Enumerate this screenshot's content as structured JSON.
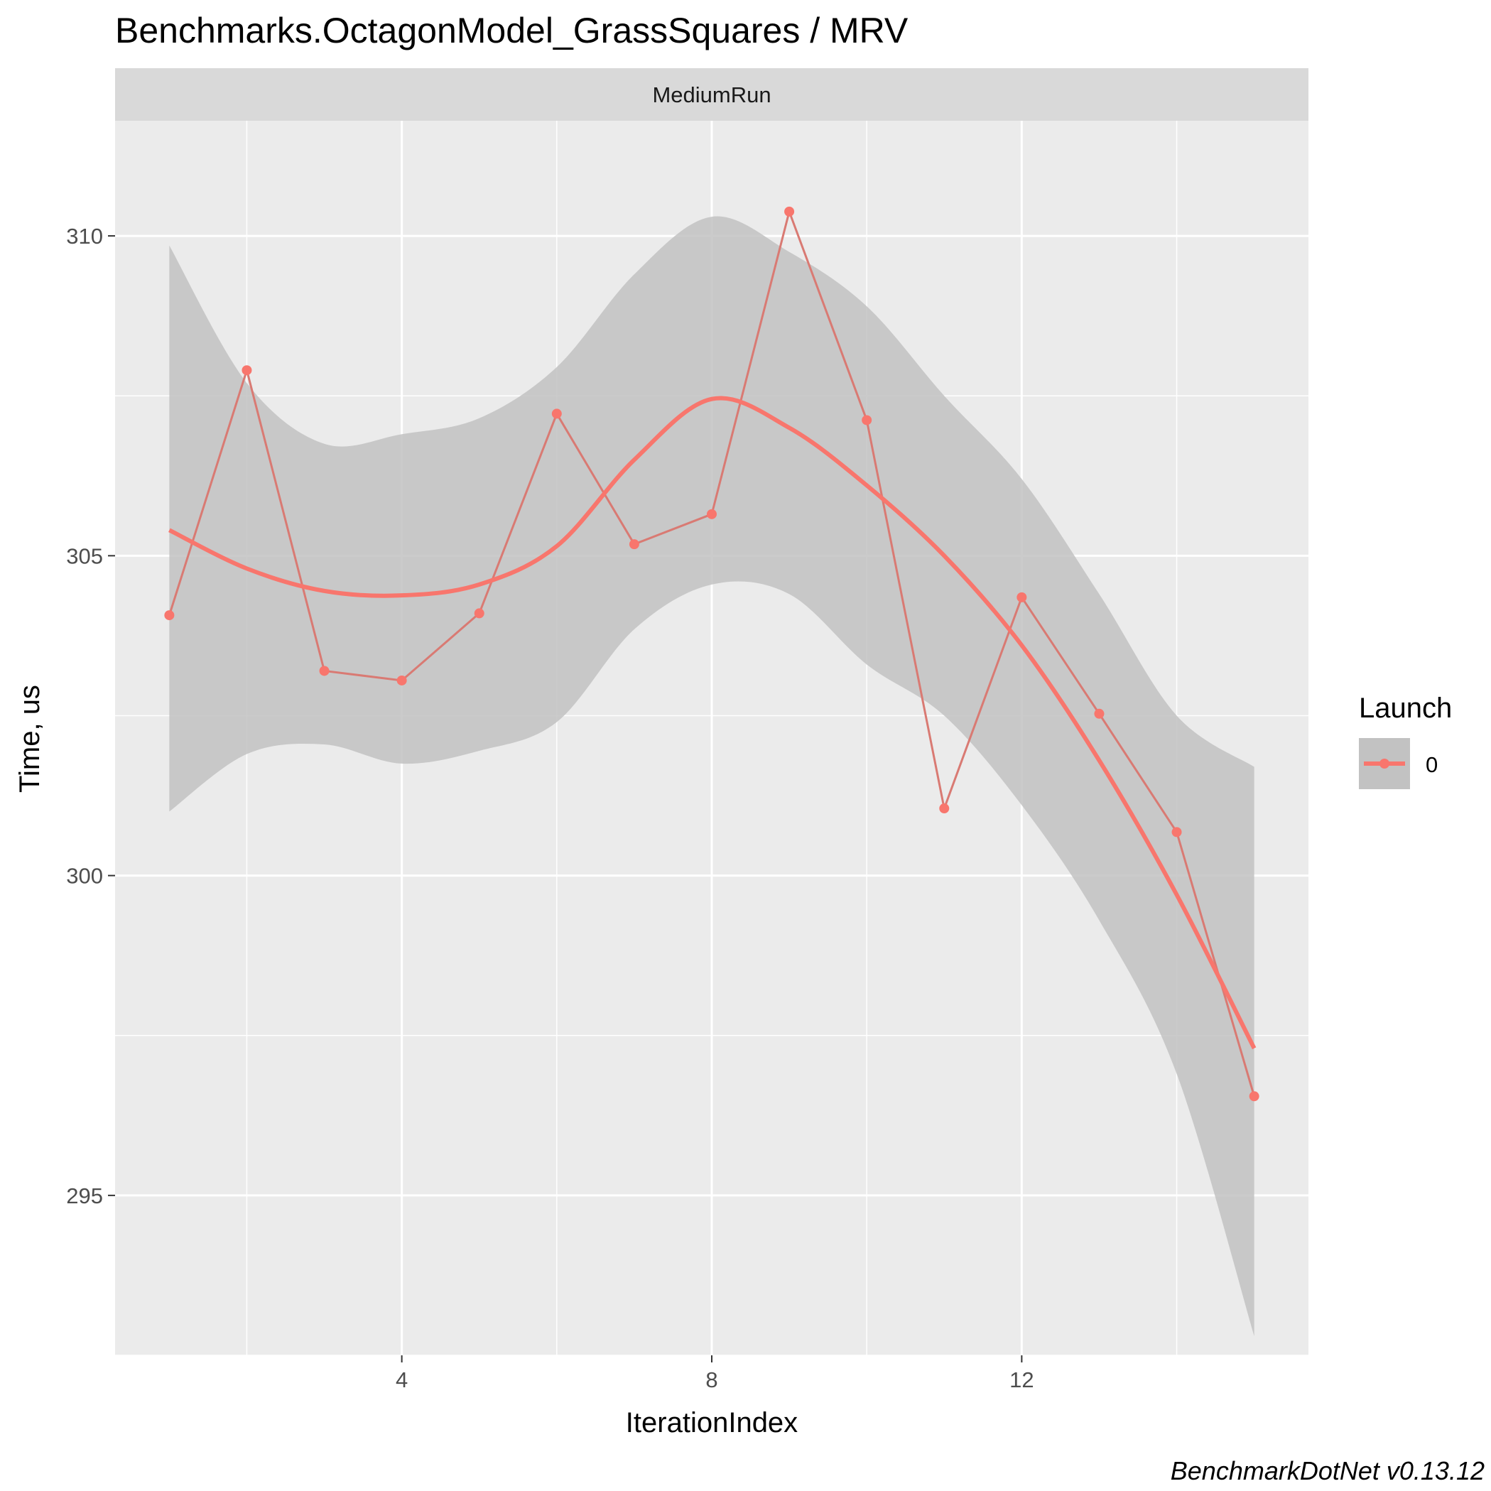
{
  "chart_data": {
    "type": "line",
    "title": "Benchmarks.OctagonModel_GrassSquares / MRV",
    "facet_label": "MediumRun",
    "xlabel": "IterationIndex",
    "ylabel": "Time, us",
    "xlim": [
      0.3,
      15.7
    ],
    "ylim": [
      292.5,
      311.8
    ],
    "x_ticks": [
      4,
      8,
      12
    ],
    "y_ticks": [
      295,
      300,
      305,
      310
    ],
    "grid": true,
    "legend": {
      "title": "Launch",
      "placement": "right",
      "entries": [
        "0"
      ]
    },
    "caption": "BenchmarkDotNet v0.13.12",
    "colors": {
      "series": "#F8766D",
      "series_muted": "#D97A73",
      "ribbon": "#C2C2C2",
      "panel": "#EBEBEB",
      "strip": "#D9D9D9"
    },
    "series": [
      {
        "name": "0",
        "x": [
          1,
          2,
          3,
          4,
          5,
          6,
          7,
          8,
          9,
          10,
          11,
          12,
          13,
          14,
          15
        ],
        "values": [
          304.07,
          307.9,
          303.2,
          303.05,
          304.1,
          307.22,
          305.18,
          305.65,
          310.38,
          307.12,
          301.05,
          304.35,
          302.53,
          300.68,
          296.55
        ]
      }
    ],
    "smooth": {
      "method": "loess",
      "x": [
        1,
        2,
        3,
        4,
        5,
        6,
        7,
        8,
        9,
        10,
        11,
        12,
        13,
        14,
        15
      ],
      "fit": [
        305.4,
        304.8,
        304.45,
        304.38,
        304.55,
        305.15,
        306.5,
        307.45,
        307.0,
        306.1,
        305.0,
        303.6,
        301.8,
        299.7,
        297.3
      ],
      "upper": [
        309.85,
        307.7,
        306.75,
        306.9,
        307.15,
        307.95,
        309.4,
        310.3,
        309.75,
        308.9,
        307.5,
        306.2,
        304.4,
        302.5,
        301.7
      ],
      "lower": [
        301.0,
        301.9,
        302.05,
        301.75,
        301.95,
        302.4,
        303.85,
        304.55,
        304.4,
        303.3,
        302.5,
        301.1,
        299.3,
        296.9,
        292.8
      ]
    }
  }
}
